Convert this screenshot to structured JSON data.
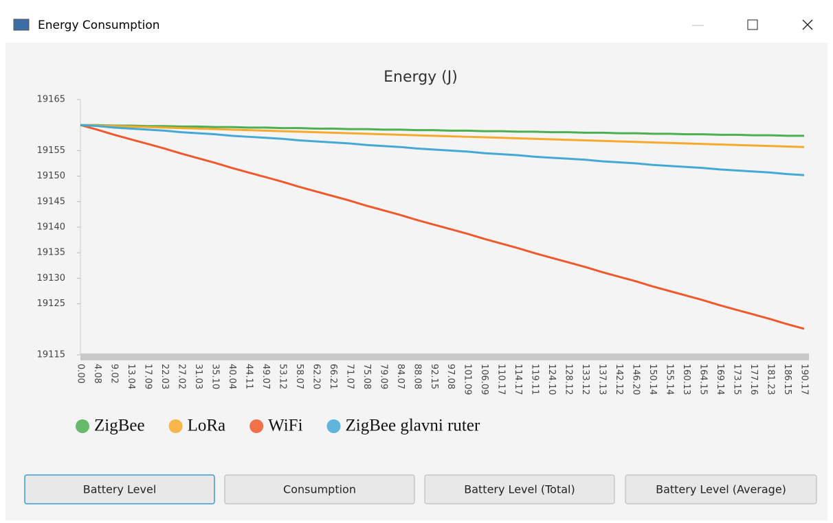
{
  "window": {
    "title": "Energy Consumption"
  },
  "chart_data": {
    "type": "line",
    "title": "Energy (J)",
    "categories": [
      "0.00",
      "4.08",
      "9.02",
      "13.04",
      "17.09",
      "22.03",
      "27.02",
      "31.03",
      "35.10",
      "40.04",
      "44.11",
      "49.07",
      "53.12",
      "58.07",
      "62.20",
      "66.21",
      "71.07",
      "75.08",
      "79.09",
      "84.07",
      "88.08",
      "92.15",
      "97.08",
      "101.09",
      "106.09",
      "110.17",
      "114.17",
      "119.11",
      "124.10",
      "128.12",
      "133.12",
      "137.13",
      "142.12",
      "146.20",
      "150.14",
      "155.14",
      "160.13",
      "164.15",
      "169.14",
      "173.15",
      "177.16",
      "181.23",
      "186.15",
      "190.17"
    ],
    "ylim": [
      19115,
      19165
    ],
    "yticks": [
      19115,
      19125,
      19130,
      19135,
      19140,
      19145,
      19150,
      19155,
      19165
    ],
    "legend": "bottom",
    "series": [
      {
        "name": "ZigBee",
        "color": "#4caf50",
        "values": [
          19160,
          19160,
          19159.9,
          19159.9,
          19159.8,
          19159.8,
          19159.7,
          19159.7,
          19159.6,
          19159.6,
          19159.5,
          19159.5,
          19159.4,
          19159.4,
          19159.3,
          19159.3,
          19159.2,
          19159.2,
          19159.1,
          19159.1,
          19159,
          19159,
          19158.9,
          19158.9,
          19158.8,
          19158.8,
          19158.7,
          19158.7,
          19158.6,
          19158.6,
          19158.5,
          19158.5,
          19158.4,
          19158.4,
          19158.3,
          19158.3,
          19158.2,
          19158.2,
          19158.1,
          19158.1,
          19158,
          19158,
          19157.9,
          19157.9
        ]
      },
      {
        "name": "LoRa",
        "color": "#f7a92e",
        "values": [
          19160,
          19159.9,
          19159.8,
          19159.7,
          19159.6,
          19159.5,
          19159.4,
          19159.3,
          19159.2,
          19159.1,
          19159,
          19158.9,
          19158.8,
          19158.7,
          19158.6,
          19158.5,
          19158.4,
          19158.3,
          19158.2,
          19158.1,
          19158,
          19157.9,
          19157.8,
          19157.7,
          19157.6,
          19157.5,
          19157.4,
          19157.3,
          19157.2,
          19157.1,
          19157,
          19156.9,
          19156.8,
          19156.7,
          19156.6,
          19156.5,
          19156.4,
          19156.3,
          19156.2,
          19156.1,
          19156,
          19155.9,
          19155.8,
          19155.7
        ]
      },
      {
        "name": "WiFi",
        "color": "#f0592b",
        "values": [
          19160,
          19159.1,
          19158.1,
          19157.2,
          19156.3,
          19155.4,
          19154.4,
          19153.5,
          19152.6,
          19151.6,
          19150.7,
          19149.8,
          19148.9,
          19147.9,
          19147,
          19146.1,
          19145.2,
          19144.2,
          19143.3,
          19142.4,
          19141.4,
          19140.5,
          19139.6,
          19138.7,
          19137.7,
          19136.8,
          19135.9,
          19134.9,
          19134,
          19133.1,
          19132.2,
          19131.2,
          19130.3,
          19129.4,
          19128.4,
          19127.5,
          19126.6,
          19125.7,
          19124.7,
          19123.8,
          19122.9,
          19122,
          19121,
          19120.1
        ]
      },
      {
        "name": "ZigBee glavni ruter",
        "color": "#45a9d6",
        "values": [
          19160,
          19159.8,
          19159.5,
          19159.3,
          19159.1,
          19158.9,
          19158.6,
          19158.4,
          19158.2,
          19157.9,
          19157.7,
          19157.5,
          19157.3,
          19157,
          19156.8,
          19156.6,
          19156.4,
          19156.1,
          19155.9,
          19155.7,
          19155.4,
          19155.2,
          19155,
          19154.8,
          19154.5,
          19154.3,
          19154.1,
          19153.8,
          19153.6,
          19153.4,
          19153.2,
          19152.9,
          19152.7,
          19152.5,
          19152.2,
          19152,
          19151.8,
          19151.6,
          19151.3,
          19151.1,
          19150.9,
          19150.7,
          19150.4,
          19150.2
        ]
      }
    ]
  },
  "buttons": [
    "Battery Level",
    "Consumption",
    "Battery Level (Total)",
    "Battery Level (Average)"
  ]
}
